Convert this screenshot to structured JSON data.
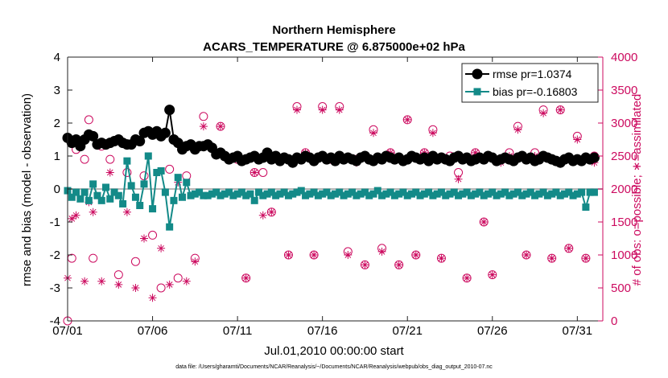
{
  "chart_data": {
    "type": "line",
    "title": "Northern Hemisphere",
    "subtitle": "ACARS_TEMPERATURE @ 6.875000e+02 hPa",
    "xlabel": "Jul.01,2010 00:00:00 start",
    "ylabel": "rmse and bias (model - observation)",
    "y2label": "# of obs: o=possible; ∗=assimilated",
    "footnote": "data file: /Users/gharamti/Documents/NCAR/Reanalysis/~/Documents/NCAR/Reanalysis/webpub/obs_diag_output_2010-07.nc",
    "xlim": [
      0,
      31.5
    ],
    "ylim": [
      -4,
      4
    ],
    "y2lim": [
      0,
      4000
    ],
    "x_tick_labels": [
      "07/01",
      "07/06",
      "07/11",
      "07/16",
      "07/21",
      "07/26",
      "07/31"
    ],
    "x_tick_values": [
      0,
      5,
      10,
      15,
      20,
      25,
      30
    ],
    "y_tick_labels": [
      "4",
      "3",
      "2",
      "1",
      "0",
      "-1",
      "-2",
      "-3",
      "-4"
    ],
    "y2_tick_labels": [
      "4000",
      "3500",
      "3000",
      "2500",
      "2000",
      "1500",
      "1000",
      "500",
      "0"
    ],
    "legend_position": "top-right",
    "grid": false,
    "colors": {
      "rmse": "#000000",
      "bias": "#138a88",
      "obs": "#cc0a5f",
      "zero_line": "#b8b8b8"
    },
    "series": [
      {
        "name": "rmse pr=1.0374",
        "axis": "left",
        "x": [
          0.0,
          0.25,
          0.5,
          0.75,
          1.0,
          1.25,
          1.5,
          1.75,
          2.0,
          2.25,
          2.5,
          2.75,
          3.0,
          3.25,
          3.5,
          3.75,
          4.0,
          4.25,
          4.5,
          4.75,
          5.0,
          5.25,
          5.5,
          5.75,
          6.0,
          6.25,
          6.5,
          6.75,
          7.0,
          7.25,
          7.5,
          7.75,
          8.0,
          8.25,
          8.5,
          8.75,
          9.0,
          9.25,
          9.5,
          9.75,
          10.0,
          10.25,
          10.5,
          10.75,
          11.0,
          11.25,
          11.5,
          11.75,
          12.0,
          12.25,
          12.5,
          12.75,
          13.0,
          13.25,
          13.5,
          13.75,
          14.0,
          14.25,
          14.5,
          14.75,
          15.0,
          15.25,
          15.5,
          15.75,
          16.0,
          16.25,
          16.5,
          16.75,
          17.0,
          17.25,
          17.5,
          17.75,
          18.0,
          18.25,
          18.5,
          18.75,
          19.0,
          19.25,
          19.5,
          19.75,
          20.0,
          20.25,
          20.5,
          20.75,
          21.0,
          21.25,
          21.5,
          21.75,
          22.0,
          22.25,
          22.5,
          22.75,
          23.0,
          23.25,
          23.5,
          23.75,
          24.0,
          24.25,
          24.5,
          24.75,
          25.0,
          25.25,
          25.5,
          25.75,
          26.0,
          26.25,
          26.5,
          26.75,
          27.0,
          27.25,
          27.5,
          27.75,
          28.0,
          28.25,
          28.5,
          28.75,
          29.0,
          29.25,
          29.5,
          29.75,
          30.0,
          30.25,
          30.5,
          30.75,
          31.0
        ],
        "y": [
          1.55,
          1.4,
          1.5,
          1.3,
          1.5,
          1.65,
          1.6,
          1.35,
          1.4,
          1.35,
          1.4,
          1.45,
          1.5,
          1.4,
          1.35,
          1.35,
          1.5,
          1.45,
          1.7,
          1.75,
          1.65,
          1.75,
          1.6,
          1.7,
          2.4,
          1.5,
          1.4,
          1.2,
          1.3,
          1.35,
          1.2,
          1.3,
          1.3,
          1.35,
          1.25,
          1.05,
          1.1,
          1.0,
          0.9,
          0.95,
          1.0,
          0.85,
          0.9,
          0.95,
          1.0,
          0.9,
          0.95,
          1.1,
          0.9,
          1.0,
          0.85,
          0.95,
          0.9,
          0.8,
          0.95,
          0.9,
          1.0,
          0.95,
          0.85,
          0.95,
          1.0,
          0.9,
          0.95,
          0.85,
          1.0,
          0.9,
          0.95,
          0.9,
          0.85,
          0.95,
          1.0,
          0.9,
          0.85,
          0.95,
          0.9,
          1.0,
          0.95,
          0.9,
          0.95,
          0.85,
          0.9,
          1.0,
          0.95,
          0.9,
          0.95,
          0.85,
          1.0,
          0.9,
          0.95,
          0.9,
          0.85,
          0.95,
          1.0,
          0.9,
          0.95,
          0.85,
          0.9,
          0.95,
          0.9,
          1.0,
          0.95,
          0.85,
          0.9,
          0.95,
          0.9,
          0.85,
          0.95,
          1.0,
          0.9,
          0.95,
          0.85,
          0.9,
          1.0,
          0.95,
          0.9,
          0.85,
          0.8,
          0.9,
          0.95,
          0.85,
          0.9,
          0.85,
          0.95,
          0.9,
          0.95
        ]
      },
      {
        "name": "bias pr=-0.16803",
        "axis": "left",
        "x": [
          0.0,
          0.25,
          0.5,
          0.75,
          1.0,
          1.25,
          1.5,
          1.75,
          2.0,
          2.25,
          2.5,
          2.75,
          3.0,
          3.25,
          3.5,
          3.75,
          4.0,
          4.25,
          4.5,
          4.75,
          5.0,
          5.25,
          5.5,
          5.75,
          6.0,
          6.25,
          6.5,
          6.75,
          7.0,
          7.25,
          7.5,
          7.75,
          8.0,
          8.25,
          8.5,
          8.75,
          9.0,
          9.25,
          9.5,
          9.75,
          10.0,
          10.25,
          10.5,
          10.75,
          11.0,
          11.25,
          11.5,
          11.75,
          12.0,
          12.25,
          12.5,
          12.75,
          13.0,
          13.25,
          13.5,
          13.75,
          14.0,
          14.25,
          14.5,
          14.75,
          15.0,
          15.25,
          15.5,
          15.75,
          16.0,
          16.25,
          16.5,
          16.75,
          17.0,
          17.25,
          17.5,
          17.75,
          18.0,
          18.25,
          18.5,
          18.75,
          19.0,
          19.25,
          19.5,
          19.75,
          20.0,
          20.25,
          20.5,
          20.75,
          21.0,
          21.25,
          21.5,
          21.75,
          22.0,
          22.25,
          22.5,
          22.75,
          23.0,
          23.25,
          23.5,
          23.75,
          24.0,
          24.25,
          24.5,
          24.75,
          25.0,
          25.25,
          25.5,
          25.75,
          26.0,
          26.25,
          26.5,
          26.75,
          27.0,
          27.25,
          27.5,
          27.75,
          28.0,
          28.25,
          28.5,
          28.75,
          29.0,
          29.25,
          29.5,
          29.75,
          30.0,
          30.25,
          30.5,
          30.75,
          31.0
        ],
        "y": [
          -0.05,
          -0.25,
          -0.1,
          -0.3,
          -0.1,
          -0.35,
          0.15,
          -0.2,
          -0.35,
          0.05,
          -0.3,
          -0.1,
          -0.2,
          -0.45,
          0.85,
          0.1,
          -0.25,
          -0.5,
          0.15,
          1.0,
          -0.6,
          0.5,
          0.55,
          -0.1,
          -1.15,
          -0.35,
          0.35,
          -0.25,
          0.2,
          -0.2,
          -0.15,
          -0.1,
          -0.2,
          -0.2,
          -0.15,
          -0.1,
          -0.2,
          -0.15,
          -0.1,
          -0.2,
          -0.15,
          -0.1,
          -0.2,
          -0.15,
          -0.35,
          -0.1,
          -0.2,
          -0.15,
          -0.1,
          -0.2,
          -0.15,
          -0.1,
          -0.2,
          -0.15,
          -0.1,
          -0.05,
          -0.2,
          -0.15,
          -0.1,
          -0.2,
          -0.15,
          -0.1,
          -0.2,
          -0.15,
          -0.1,
          -0.2,
          -0.15,
          -0.1,
          -0.2,
          -0.15,
          -0.1,
          -0.2,
          -0.15,
          -0.05,
          -0.2,
          -0.15,
          -0.1,
          -0.2,
          -0.15,
          -0.1,
          -0.2,
          -0.15,
          -0.1,
          -0.2,
          -0.15,
          -0.1,
          -0.2,
          -0.15,
          -0.1,
          -0.2,
          -0.15,
          -0.1,
          -0.2,
          -0.15,
          -0.1,
          -0.2,
          -0.15,
          -0.1,
          -0.2,
          -0.15,
          -0.1,
          -0.2,
          -0.15,
          -0.1,
          -0.2,
          -0.15,
          -0.1,
          -0.2,
          -0.15,
          -0.1,
          -0.2,
          -0.15,
          -0.1,
          -0.2,
          -0.15,
          -0.1,
          -0.2,
          -0.15,
          -0.1,
          -0.2,
          -0.15,
          -0.1,
          -0.55,
          -0.1,
          -0.1
        ]
      },
      {
        "name": "possible",
        "axis": "right",
        "marker": "circle",
        "x": [
          0,
          0.25,
          0.5,
          1,
          1.25,
          1.5,
          2,
          2.5,
          3,
          3.5,
          4,
          4.5,
          5,
          5.5,
          6,
          6.5,
          7,
          7.5,
          8,
          9,
          10,
          10.5,
          11,
          11.5,
          12,
          13,
          13.5,
          14,
          14.5,
          15,
          15.5,
          16,
          16.5,
          17,
          17.5,
          18,
          18.5,
          19,
          19.5,
          20,
          20.5,
          21,
          21.5,
          22,
          22.5,
          23,
          23.5,
          24,
          24.5,
          25,
          25.5,
          26,
          26.5,
          27,
          27.5,
          28,
          28.5,
          29,
          29.5,
          30,
          30.5,
          31
        ],
        "y": [
          0,
          950,
          2600,
          2450,
          3050,
          950,
          2650,
          2450,
          700,
          2250,
          900,
          2200,
          1300,
          500,
          2300,
          650,
          2200,
          950,
          3100,
          2950,
          2450,
          650,
          2250,
          2250,
          1650,
          1000,
          3250,
          2550,
          1000,
          3250,
          2450,
          3250,
          1050,
          2450,
          850,
          2900,
          1100,
          2550,
          850,
          3050,
          1000,
          2550,
          2900,
          950,
          2500,
          2250,
          650,
          2550,
          1500,
          700,
          2450,
          2550,
          2950,
          1000,
          2550,
          3200,
          950,
          3200,
          1100,
          2800,
          950,
          2500
        ]
      },
      {
        "name": "assimilated",
        "axis": "right",
        "marker": "asterisk",
        "x": [
          0,
          0.25,
          0.5,
          1,
          1.25,
          1.5,
          2,
          2.5,
          3,
          3.5,
          4,
          4.5,
          5,
          5.5,
          6,
          6.5,
          7,
          7.5,
          8,
          9,
          10,
          10.5,
          11,
          11.5,
          12,
          13,
          13.5,
          14,
          14.5,
          15,
          15.5,
          16,
          16.5,
          17,
          17.5,
          18,
          18.5,
          19,
          19.5,
          20,
          20.5,
          21,
          21.5,
          22,
          22.5,
          23,
          23.5,
          24,
          24.5,
          25,
          25.5,
          26,
          26.5,
          27,
          27.5,
          28,
          28.5,
          29,
          29.5,
          30,
          30.5,
          31
        ],
        "y": [
          650,
          1550,
          1600,
          600,
          1800,
          1650,
          600,
          2250,
          550,
          1650,
          500,
          1250,
          350,
          1100,
          550,
          2100,
          600,
          900,
          2950,
          2950,
          2450,
          650,
          2250,
          1600,
          1650,
          1000,
          3200,
          2550,
          1000,
          3200,
          2450,
          3200,
          1000,
          2400,
          850,
          2850,
          1050,
          2550,
          850,
          3050,
          1000,
          2550,
          2850,
          950,
          2450,
          2150,
          650,
          2550,
          1500,
          700,
          2400,
          2500,
          2900,
          1000,
          2500,
          3150,
          950,
          3200,
          1100,
          2750,
          950,
          2400
        ]
      }
    ]
  }
}
